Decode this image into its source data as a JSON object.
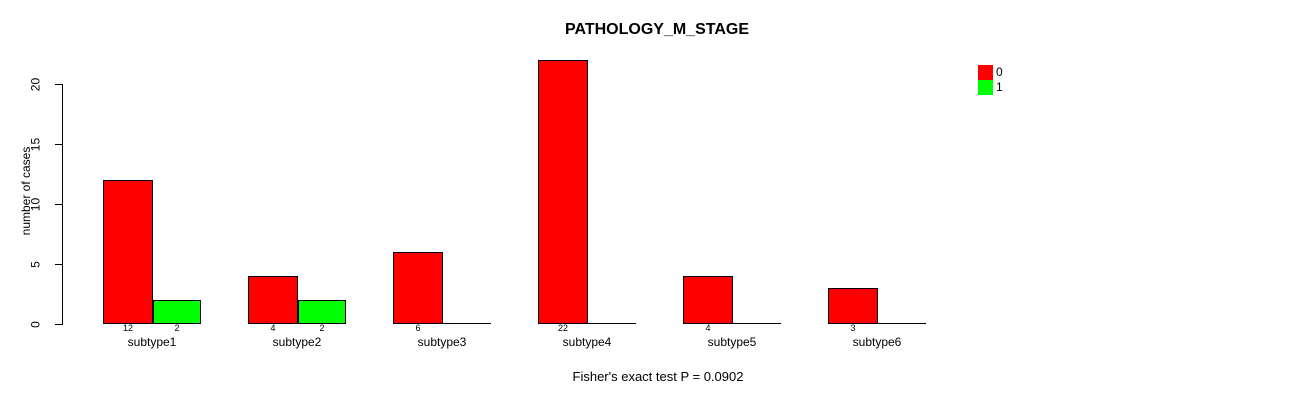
{
  "chart_data": {
    "type": "bar",
    "title": "PATHOLOGY_M_STAGE",
    "ylabel": "number of cases",
    "xlabel": "",
    "footnote": "Fisher's exact test P = 0.0902",
    "categories": [
      "subtype1",
      "subtype2",
      "subtype3",
      "subtype4",
      "subtype5",
      "subtype6"
    ],
    "series": [
      {
        "name": "0",
        "color": "#ff0000",
        "values": [
          12,
          4,
          6,
          22,
          4,
          3
        ]
      },
      {
        "name": "1",
        "color": "#00ff00",
        "values": [
          2,
          2,
          0,
          0,
          0,
          0
        ]
      }
    ],
    "bar_count_labels": [
      [
        12,
        2
      ],
      [
        4,
        2
      ],
      [
        6,
        null
      ],
      [
        22,
        null
      ],
      [
        4,
        null
      ],
      [
        3,
        null
      ]
    ],
    "yticks": [
      0,
      5,
      10,
      15,
      20
    ],
    "ylim": [
      0,
      22
    ],
    "grid": false,
    "legend_position": "top-right",
    "bar_border_color": "#000000",
    "background_color": "#ffffff"
  }
}
